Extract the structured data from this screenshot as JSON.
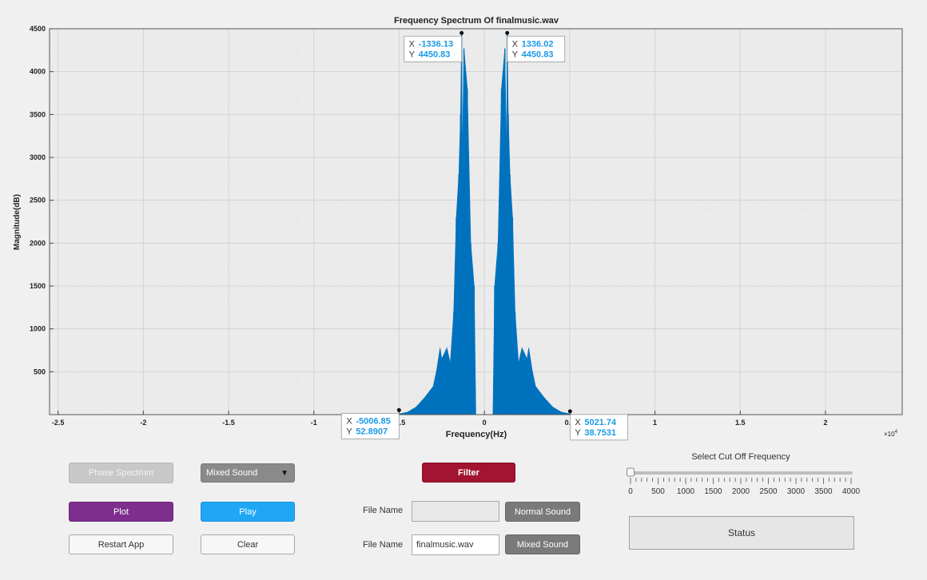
{
  "chart_data": {
    "type": "line",
    "title": "Frequency Spectrum Of finalmusic.wav",
    "xlabel": "Frequency(Hz)",
    "ylabel": "Magnitude(dB)",
    "x_exponent_label": "×10",
    "x_exponent_power": "4",
    "xlim": [
      -25500,
      24500
    ],
    "ylim": [
      0,
      4500
    ],
    "x_ticks": [
      -25000,
      -20000,
      -15000,
      -10000,
      -5000,
      0,
      5000,
      10000,
      15000,
      20000
    ],
    "x_tick_labels": [
      "-2.5",
      "-2",
      "-1.5",
      "-1",
      "-0.5",
      "0",
      "0.5",
      "1",
      "1.5",
      "2"
    ],
    "y_ticks": [
      500,
      1000,
      1500,
      2000,
      2500,
      3000,
      3500,
      4000,
      4500
    ],
    "y_tick_labels": [
      "500",
      "1000",
      "1500",
      "2000",
      "2500",
      "3000",
      "3500",
      "4000",
      "4500"
    ],
    "grid": true,
    "series_color": "#0072bd",
    "envelope": [
      [
        -5100,
        5
      ],
      [
        -4500,
        30
      ],
      [
        -4000,
        90
      ],
      [
        -3500,
        200
      ],
      [
        -3000,
        330
      ],
      [
        -2800,
        520
      ],
      [
        -2600,
        780
      ],
      [
        -2500,
        650
      ],
      [
        -2200,
        780
      ],
      [
        -2000,
        600
      ],
      [
        -1800,
        1200
      ],
      [
        -1650,
        2300
      ],
      [
        -1500,
        2800
      ],
      [
        -1400,
        3500
      ],
      [
        -1336.13,
        4450.83
      ],
      [
        -1300,
        3000
      ],
      [
        -1200,
        4270
      ],
      [
        -1000,
        3800
      ],
      [
        -800,
        2000
      ],
      [
        -600,
        1500
      ],
      [
        -500,
        0
      ],
      [
        500,
        0
      ],
      [
        600,
        1500
      ],
      [
        800,
        2000
      ],
      [
        1000,
        3800
      ],
      [
        1200,
        4270
      ],
      [
        1300,
        3000
      ],
      [
        1336.02,
        4450.83
      ],
      [
        1400,
        3500
      ],
      [
        1500,
        2800
      ],
      [
        1650,
        2300
      ],
      [
        1800,
        1200
      ],
      [
        2000,
        600
      ],
      [
        2200,
        780
      ],
      [
        2500,
        650
      ],
      [
        2600,
        780
      ],
      [
        2800,
        520
      ],
      [
        3000,
        330
      ],
      [
        3500,
        200
      ],
      [
        4000,
        90
      ],
      [
        4500,
        30
      ],
      [
        5100,
        5
      ]
    ],
    "datatips": [
      {
        "x": "-1336.13",
        "y": "4450.83",
        "xv": -1336.13,
        "yv": 4450.83,
        "side": "left"
      },
      {
        "x": "1336.02",
        "y": "4450.83",
        "xv": 1336.02,
        "yv": 4450.83,
        "side": "right"
      },
      {
        "x": "-5006.85",
        "y": "52.8907",
        "xv": -5006.85,
        "yv": 52.8907,
        "side": "left"
      },
      {
        "x": "5021.74",
        "y": "38.7531",
        "xv": 5021.74,
        "yv": 38.7531,
        "side": "right"
      }
    ],
    "datatip_x_label": "X",
    "datatip_y_label": "Y"
  },
  "controls": {
    "phase_spectrum": "Phase Spectrum",
    "sound_select": "Mixed Sound",
    "filter": "Filter",
    "plot": "Plot",
    "play": "Play",
    "restart": "Restart App",
    "clear": "Clear",
    "file_name_label_1": "File Name",
    "file_name_value_1": "",
    "normal_sound": "Normal Sound",
    "file_name_label_2": "File Name",
    "file_name_value_2": "finalmusic.wav",
    "mixed_sound": "Mixed Sound",
    "slider_title": "Select Cut Off Frequency",
    "slider_value": 0,
    "slider_min": 0,
    "slider_max": 4000,
    "slider_ticks": [
      "0",
      "500",
      "1000",
      "1500",
      "2000",
      "2500",
      "3000",
      "3500",
      "4000"
    ],
    "status": "Status"
  }
}
